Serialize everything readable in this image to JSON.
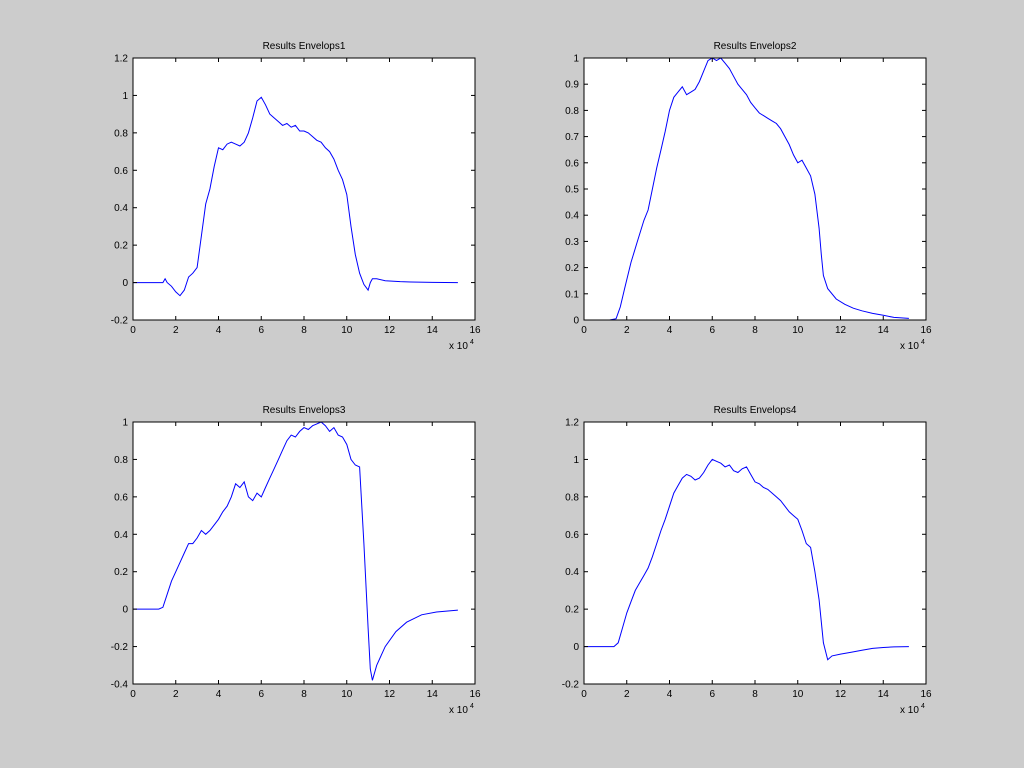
{
  "colors": {
    "background": "#cccccc",
    "axes_face": "#ffffff",
    "line": "#0000ff"
  },
  "chart_data": [
    {
      "type": "line",
      "title": "Results Envelops1",
      "xlabel": "",
      "ylabel": "",
      "xlim": [
        0,
        16
      ],
      "ylim": [
        -0.2,
        1.2
      ],
      "x_ticks": [
        0,
        2,
        4,
        6,
        8,
        10,
        12,
        14,
        16
      ],
      "y_ticks": [
        -0.2,
        0,
        0.2,
        0.4,
        0.6,
        0.8,
        1,
        1.2
      ],
      "x_exponent": {
        "base": "x 10",
        "power": "4"
      },
      "grid": false,
      "series": [
        {
          "x": [
            0,
            1,
            1.4,
            1.5,
            1.6,
            1.8,
            2.0,
            2.2,
            2.4,
            2.6,
            2.8,
            3.0,
            3.2,
            3.4,
            3.6,
            3.8,
            4.0,
            4.2,
            4.4,
            4.6,
            4.8,
            5.0,
            5.2,
            5.4,
            5.6,
            5.8,
            6.0,
            6.2,
            6.4,
            6.6,
            6.8,
            7.0,
            7.2,
            7.4,
            7.6,
            7.8,
            8.0,
            8.2,
            8.4,
            8.6,
            8.8,
            9.0,
            9.2,
            9.4,
            9.6,
            9.8,
            10.0,
            10.2,
            10.4,
            10.6,
            10.8,
            11.0,
            11.1,
            11.2,
            11.4,
            11.8,
            12.5,
            13,
            14,
            15.2
          ],
          "y": [
            0,
            0,
            0,
            0.02,
            0,
            -0.02,
            -0.05,
            -0.07,
            -0.04,
            0.03,
            0.05,
            0.08,
            0.25,
            0.42,
            0.5,
            0.62,
            0.72,
            0.71,
            0.74,
            0.75,
            0.74,
            0.73,
            0.75,
            0.8,
            0.88,
            0.97,
            0.99,
            0.95,
            0.9,
            0.88,
            0.86,
            0.84,
            0.85,
            0.83,
            0.84,
            0.81,
            0.81,
            0.8,
            0.78,
            0.76,
            0.75,
            0.72,
            0.7,
            0.66,
            0.6,
            0.55,
            0.47,
            0.3,
            0.15,
            0.05,
            -0.01,
            -0.04,
            0.0,
            0.02,
            0.02,
            0.01,
            0.005,
            0.003,
            0.001,
            0
          ]
        }
      ]
    },
    {
      "type": "line",
      "title": "Results Envelops2",
      "xlabel": "",
      "ylabel": "",
      "xlim": [
        0,
        16
      ],
      "ylim": [
        0,
        1
      ],
      "x_ticks": [
        0,
        2,
        4,
        6,
        8,
        10,
        12,
        14,
        16
      ],
      "y_ticks": [
        0,
        0.1,
        0.2,
        0.3,
        0.4,
        0.5,
        0.6,
        0.7,
        0.8,
        0.9,
        1
      ],
      "x_exponent": {
        "base": "x 10",
        "power": "4"
      },
      "grid": false,
      "series": [
        {
          "x": [
            0,
            1.2,
            1.5,
            1.7,
            1.9,
            2.2,
            2.5,
            2.8,
            3.0,
            3.2,
            3.4,
            3.6,
            3.8,
            4.0,
            4.2,
            4.4,
            4.6,
            4.8,
            5.0,
            5.2,
            5.4,
            5.6,
            5.8,
            6.0,
            6.2,
            6.4,
            6.6,
            6.8,
            7.0,
            7.2,
            7.4,
            7.6,
            7.8,
            8.0,
            8.2,
            8.4,
            8.6,
            8.8,
            9.0,
            9.2,
            9.4,
            9.6,
            9.8,
            10.0,
            10.2,
            10.4,
            10.6,
            10.8,
            11.0,
            11.1,
            11.2,
            11.4,
            11.8,
            12.2,
            12.6,
            13,
            13.5,
            14,
            14.5,
            15.2
          ],
          "y": [
            0,
            0,
            0.005,
            0.05,
            0.12,
            0.22,
            0.3,
            0.38,
            0.42,
            0.5,
            0.58,
            0.65,
            0.72,
            0.8,
            0.85,
            0.87,
            0.89,
            0.86,
            0.87,
            0.88,
            0.91,
            0.95,
            0.99,
            1.0,
            0.99,
            1.0,
            0.98,
            0.96,
            0.93,
            0.9,
            0.88,
            0.86,
            0.83,
            0.81,
            0.79,
            0.78,
            0.77,
            0.76,
            0.75,
            0.73,
            0.7,
            0.67,
            0.63,
            0.6,
            0.61,
            0.58,
            0.55,
            0.48,
            0.35,
            0.25,
            0.17,
            0.12,
            0.08,
            0.06,
            0.045,
            0.035,
            0.025,
            0.018,
            0.01,
            0.006
          ]
        }
      ]
    },
    {
      "type": "line",
      "title": "Results Envelops3",
      "xlabel": "",
      "ylabel": "",
      "xlim": [
        0,
        16
      ],
      "ylim": [
        -0.4,
        1
      ],
      "x_ticks": [
        0,
        2,
        4,
        6,
        8,
        10,
        12,
        14,
        16
      ],
      "y_ticks": [
        -0.4,
        -0.2,
        0,
        0.2,
        0.4,
        0.6,
        0.8,
        1
      ],
      "x_exponent": {
        "base": "x 10",
        "power": "4"
      },
      "grid": false,
      "series": [
        {
          "x": [
            0,
            1.2,
            1.4,
            1.6,
            1.8,
            2.0,
            2.2,
            2.4,
            2.6,
            2.8,
            3.0,
            3.2,
            3.4,
            3.6,
            3.8,
            4.0,
            4.2,
            4.4,
            4.6,
            4.8,
            5.0,
            5.2,
            5.4,
            5.6,
            5.8,
            6.0,
            6.2,
            6.4,
            6.6,
            6.8,
            7.0,
            7.2,
            7.4,
            7.6,
            7.8,
            8.0,
            8.2,
            8.4,
            8.6,
            8.8,
            9.0,
            9.2,
            9.4,
            9.6,
            9.8,
            10.0,
            10.2,
            10.4,
            10.6,
            10.8,
            11.0,
            11.1,
            11.2,
            11.4,
            11.8,
            12.3,
            12.8,
            13.5,
            14.2,
            15.2
          ],
          "y": [
            0,
            0,
            0.01,
            0.08,
            0.15,
            0.2,
            0.25,
            0.3,
            0.35,
            0.35,
            0.38,
            0.42,
            0.4,
            0.42,
            0.45,
            0.48,
            0.52,
            0.55,
            0.6,
            0.67,
            0.65,
            0.68,
            0.6,
            0.58,
            0.62,
            0.6,
            0.65,
            0.7,
            0.75,
            0.8,
            0.85,
            0.9,
            0.93,
            0.92,
            0.95,
            0.97,
            0.96,
            0.98,
            0.99,
            1.0,
            0.98,
            0.95,
            0.97,
            0.93,
            0.92,
            0.88,
            0.8,
            0.77,
            0.76,
            0.35,
            -0.1,
            -0.32,
            -0.38,
            -0.3,
            -0.2,
            -0.12,
            -0.07,
            -0.03,
            -0.015,
            -0.005
          ]
        }
      ]
    },
    {
      "type": "line",
      "title": "Results Envelops4",
      "xlabel": "",
      "ylabel": "",
      "xlim": [
        0,
        16
      ],
      "ylim": [
        -0.2,
        1.2
      ],
      "x_ticks": [
        0,
        2,
        4,
        6,
        8,
        10,
        12,
        14,
        16
      ],
      "y_ticks": [
        -0.2,
        0,
        0.2,
        0.4,
        0.6,
        0.8,
        1,
        1.2
      ],
      "x_exponent": {
        "base": "x 10",
        "power": "4"
      },
      "grid": false,
      "series": [
        {
          "x": [
            0,
            1.4,
            1.6,
            1.8,
            2.0,
            2.2,
            2.4,
            2.6,
            2.8,
            3.0,
            3.2,
            3.4,
            3.6,
            3.8,
            4.0,
            4.2,
            4.4,
            4.6,
            4.8,
            5.0,
            5.2,
            5.4,
            5.6,
            5.8,
            6.0,
            6.2,
            6.4,
            6.6,
            6.8,
            7.0,
            7.2,
            7.4,
            7.6,
            7.8,
            8.0,
            8.2,
            8.4,
            8.6,
            8.8,
            9.0,
            9.2,
            9.4,
            9.6,
            9.8,
            10.0,
            10.2,
            10.4,
            10.6,
            10.8,
            11.0,
            11.2,
            11.4,
            11.6,
            12,
            12.5,
            13,
            13.5,
            14,
            14.5,
            15.2
          ],
          "y": [
            0,
            0,
            0.02,
            0.1,
            0.18,
            0.24,
            0.3,
            0.34,
            0.38,
            0.42,
            0.48,
            0.55,
            0.62,
            0.68,
            0.75,
            0.82,
            0.86,
            0.9,
            0.92,
            0.91,
            0.89,
            0.9,
            0.93,
            0.97,
            1.0,
            0.99,
            0.98,
            0.96,
            0.97,
            0.94,
            0.93,
            0.95,
            0.96,
            0.92,
            0.88,
            0.87,
            0.85,
            0.84,
            0.82,
            0.8,
            0.78,
            0.75,
            0.72,
            0.7,
            0.68,
            0.62,
            0.55,
            0.53,
            0.4,
            0.25,
            0.02,
            -0.07,
            -0.05,
            -0.04,
            -0.03,
            -0.02,
            -0.01,
            -0.005,
            -0.002,
            0
          ]
        }
      ]
    }
  ]
}
